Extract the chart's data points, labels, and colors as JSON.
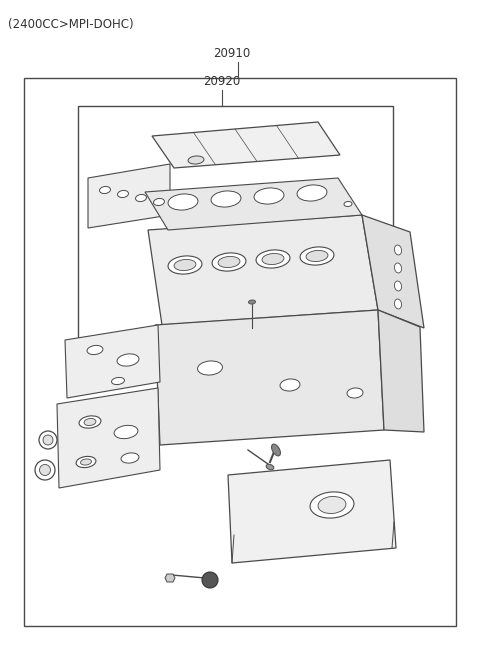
{
  "title": "(2400CC>MPI-DOHC)",
  "label_20910": "20910",
  "label_20920": "20920",
  "bg_color": "#ffffff",
  "line_color": "#4a4a4a",
  "text_color": "#333333",
  "fig_width": 4.8,
  "fig_height": 6.55
}
